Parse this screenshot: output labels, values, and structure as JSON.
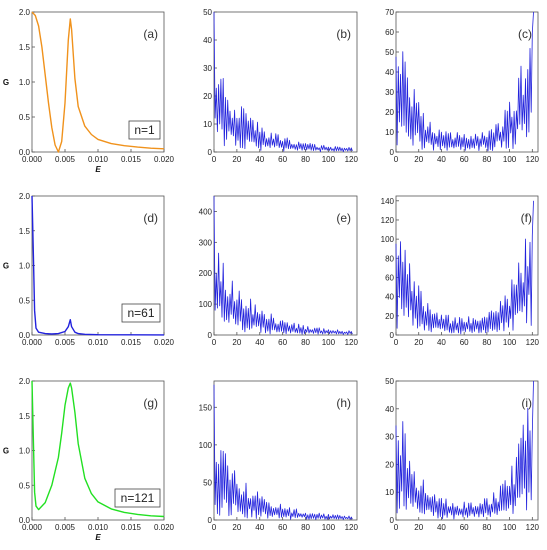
{
  "figure": {
    "rows": [
      {
        "n_label": "n=1",
        "G_color": "#f0921c"
      },
      {
        "n_label": "n=61",
        "G_color": "#2222dd"
      },
      {
        "n_label": "n=121",
        "G_color": "#22e022"
      }
    ]
  },
  "chart_data": [
    {
      "type": "line",
      "panel": "(a)",
      "xlabel": "E",
      "ylabel": "G",
      "xlim": [
        0,
        0.02
      ],
      "ylim": [
        0,
        2.0
      ],
      "xticks": [
        "0.000",
        "0.005",
        "0.010",
        "0.015",
        "0.020"
      ],
      "yticks": [
        "0.0",
        "0.5",
        "1.0",
        "1.5",
        "2.0"
      ],
      "annotation": "n=1",
      "color": "#f0921c",
      "series": [
        {
          "x": [
            0,
            0.0005,
            0.001,
            0.0015,
            0.002,
            0.0025,
            0.003,
            0.0035,
            0.004,
            0.0045,
            0.005,
            0.0055,
            0.0058,
            0.006,
            0.0065,
            0.007,
            0.008,
            0.009,
            0.01,
            0.012,
            0.014,
            0.016,
            0.018,
            0.02
          ],
          "y": [
            2.0,
            1.95,
            1.8,
            1.5,
            1.1,
            0.7,
            0.35,
            0.1,
            0.0,
            0.15,
            0.7,
            1.6,
            1.9,
            1.75,
            1.05,
            0.65,
            0.37,
            0.25,
            0.18,
            0.12,
            0.09,
            0.07,
            0.055,
            0.045
          ]
        }
      ]
    },
    {
      "type": "line",
      "panel": "(b)",
      "xlabel": "",
      "ylabel": "",
      "xlim": [
        0,
        125
      ],
      "ylim": [
        0,
        50
      ],
      "yticks": [
        "0",
        "10",
        "20",
        "30",
        "40",
        "50"
      ],
      "xticks": [
        "0",
        "20",
        "40",
        "60",
        "80",
        "100",
        "120"
      ],
      "profile": "decay",
      "peak": 50,
      "color": "#2222dd"
    },
    {
      "type": "line",
      "panel": "(c)",
      "xlabel": "",
      "ylabel": "",
      "xlim": [
        0,
        125
      ],
      "ylim": [
        0,
        70
      ],
      "yticks": [
        "0",
        "10",
        "20",
        "30",
        "40",
        "50",
        "60",
        "70"
      ],
      "xticks": [
        "0",
        "20",
        "40",
        "60",
        "80",
        "100",
        "120"
      ],
      "profile": "u",
      "peak": 70,
      "color": "#2222dd"
    },
    {
      "type": "line",
      "panel": "(d)",
      "xlabel": "",
      "ylabel": "G",
      "xlim": [
        0,
        0.02
      ],
      "ylim": [
        0,
        2.0
      ],
      "xticks": [
        "0.000",
        "0.005",
        "0.010",
        "0.015",
        "0.020"
      ],
      "yticks": [
        "0.0",
        "0.5",
        "1.0",
        "1.5",
        "2.0"
      ],
      "annotation": "n=61",
      "color": "#2222dd",
      "series": [
        {
          "x": [
            0,
            0.0002,
            0.0004,
            0.0006,
            0.001,
            0.002,
            0.003,
            0.004,
            0.005,
            0.0055,
            0.0058,
            0.006,
            0.0065,
            0.007,
            0.008,
            0.01,
            0.015,
            0.02
          ],
          "y": [
            2.0,
            1.2,
            0.35,
            0.1,
            0.04,
            0.02,
            0.015,
            0.02,
            0.05,
            0.12,
            0.22,
            0.12,
            0.04,
            0.02,
            0.01,
            0.005,
            0.003,
            0.002
          ]
        }
      ]
    },
    {
      "type": "line",
      "panel": "(e)",
      "xlabel": "",
      "ylabel": "",
      "xlim": [
        0,
        125
      ],
      "ylim": [
        0,
        450
      ],
      "yticks": [
        "0",
        "100",
        "200",
        "300",
        "400"
      ],
      "xticks": [
        "0",
        "20",
        "40",
        "60",
        "80",
        "100",
        "120"
      ],
      "profile": "decay",
      "peak": 450,
      "color": "#2222dd"
    },
    {
      "type": "line",
      "panel": "(f)",
      "xlabel": "",
      "ylabel": "",
      "xlim": [
        0,
        125
      ],
      "ylim": [
        0,
        145
      ],
      "yticks": [
        "0",
        "20",
        "40",
        "60",
        "80",
        "100",
        "120",
        "140"
      ],
      "xticks": [
        "0",
        "20",
        "40",
        "60",
        "80",
        "100",
        "120"
      ],
      "profile": "u",
      "peak": 140,
      "color": "#2222dd"
    },
    {
      "type": "line",
      "panel": "(g)",
      "xlabel": "E",
      "ylabel": "G",
      "xlim": [
        0,
        0.02
      ],
      "ylim": [
        0,
        2.0
      ],
      "xticks": [
        "0.000",
        "0.005",
        "0.010",
        "0.015",
        "0.020"
      ],
      "yticks": [
        "0.0",
        "0.5",
        "1.0",
        "1.5",
        "2.0"
      ],
      "annotation": "n=121",
      "color": "#22e022",
      "series": [
        {
          "x": [
            0,
            0.0002,
            0.0004,
            0.0006,
            0.001,
            0.002,
            0.003,
            0.004,
            0.0045,
            0.005,
            0.0055,
            0.0058,
            0.006,
            0.0065,
            0.007,
            0.008,
            0.009,
            0.01,
            0.012,
            0.014,
            0.016,
            0.018,
            0.02
          ],
          "y": [
            2.0,
            1.2,
            0.4,
            0.2,
            0.15,
            0.25,
            0.5,
            0.9,
            1.25,
            1.65,
            1.9,
            1.97,
            1.9,
            1.55,
            1.1,
            0.6,
            0.38,
            0.26,
            0.16,
            0.11,
            0.08,
            0.06,
            0.05
          ]
        }
      ]
    },
    {
      "type": "line",
      "panel": "(h)",
      "xlabel": "",
      "ylabel": "",
      "xlim": [
        0,
        125
      ],
      "ylim": [
        0,
        185
      ],
      "yticks": [
        "0",
        "50",
        "100",
        "150"
      ],
      "xticks": [
        "0",
        "20",
        "40",
        "60",
        "80",
        "100",
        "120"
      ],
      "profile": "decay",
      "peak": 180,
      "color": "#2222dd"
    },
    {
      "type": "line",
      "panel": "(i)",
      "xlabel": "",
      "ylabel": "",
      "xlim": [
        0,
        125
      ],
      "ylim": [
        0,
        50
      ],
      "yticks": [
        "0",
        "10",
        "20",
        "30",
        "40",
        "50"
      ],
      "xticks": [
        "0",
        "20",
        "40",
        "60",
        "80",
        "100",
        "120"
      ],
      "profile": "u",
      "peak": 50,
      "color": "#2222dd"
    }
  ]
}
